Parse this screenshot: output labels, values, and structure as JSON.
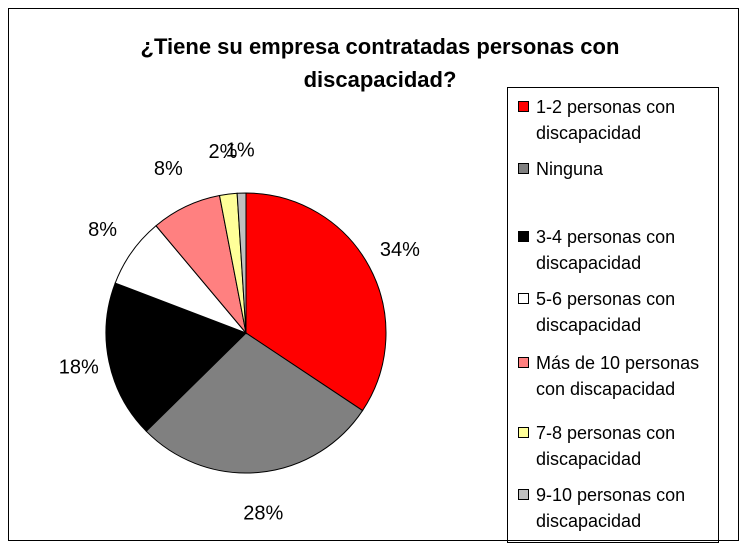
{
  "chart_data": {
    "type": "pie",
    "title": "¿Tiene su empresa contratadas personas con discapacidad?",
    "categories": [
      "1-2 personas con discapacidad",
      "Ninguna",
      "3-4 personas con discapacidad",
      "5-6 personas con discapacidad",
      "Más de 10 personas con discapacidad",
      "7-8 personas con discapacidad",
      "9-10 personas con discapacidad"
    ],
    "values": [
      34,
      28,
      18,
      8,
      8,
      2,
      1
    ],
    "value_labels": [
      "34%",
      "28%",
      "18%",
      "8%",
      "8%",
      "2%",
      "1%"
    ],
    "colors": [
      "#ff0000",
      "#808080",
      "#000000",
      "#ffffff",
      "#ff8080",
      "#ffff99",
      "#c0c0c0"
    ],
    "legend": "right"
  }
}
